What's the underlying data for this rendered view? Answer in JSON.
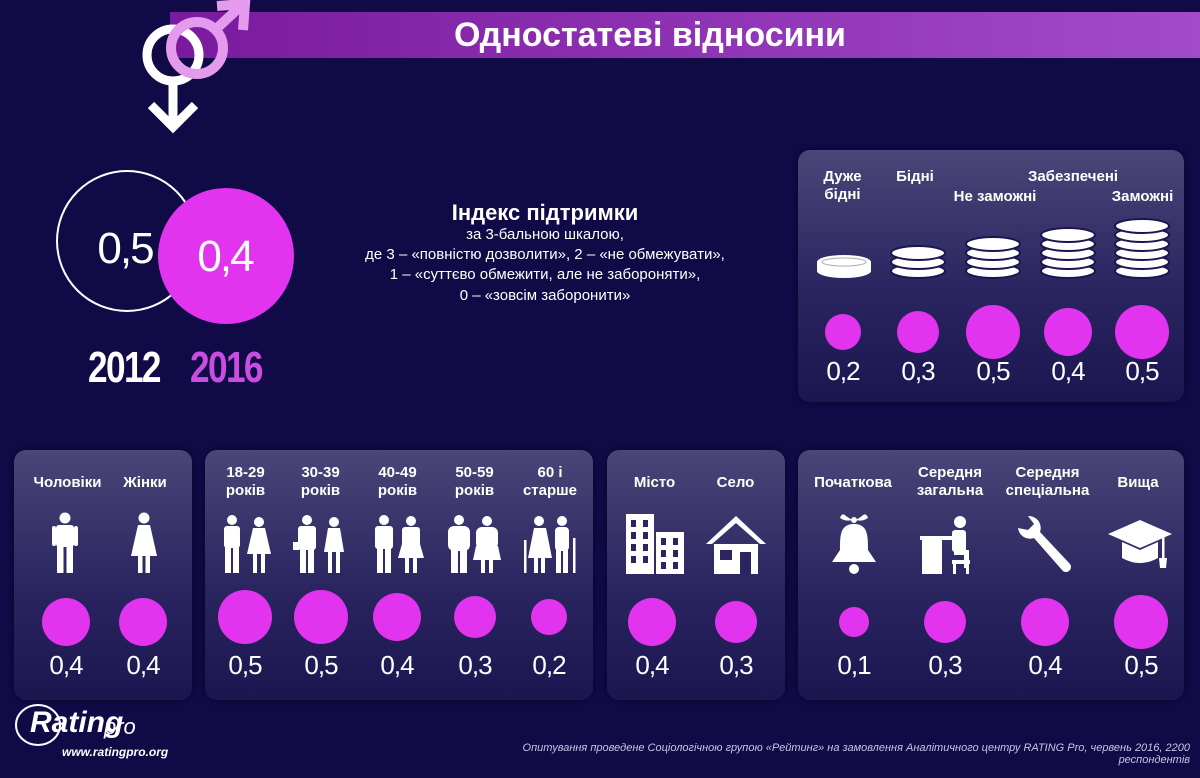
{
  "title": "Одностатеві відносини",
  "colors": {
    "accent": "#e234ef",
    "background": "#100a47",
    "title_bar": "#8e2fb6"
  },
  "overall": {
    "year_2012": "2012",
    "value_2012": "0,5",
    "year_2016": "2016",
    "value_2016": "0,4"
  },
  "index": {
    "title": "Індекс підтримки",
    "line1": "за 3-бальною шкалою,",
    "line2": "де 3 – «повністю дозволити», 2 – «не обмежувати»,",
    "line3": "1 – «суттєво обмежити, але не забороняти»,",
    "line4": "0 – «зовсім заборонити»"
  },
  "footnote": "Опитування проведене Соціологічною групою «Рейтинг» на замовлення Аналітичного центру RATING Pro, червень 2016, 2200 респондентів",
  "logo": {
    "name": "Rating",
    "suffix": "pro",
    "url": "www.ratingpro.org"
  },
  "chart_data": [
    {
      "type": "bubble",
      "group": "wealth",
      "categories": [
        "Дуже бідні",
        "Бідні",
        "Не заможні",
        "Забезпечені",
        "Заможні"
      ],
      "values": [
        0.2,
        0.3,
        0.5,
        0.4,
        0.5
      ],
      "labels": [
        "0,2",
        "0,3",
        "0,5",
        "0,4",
        "0,5"
      ],
      "icons": [
        "coins-1-icon",
        "coins-2-icon",
        "coins-3-icon",
        "coins-4-icon",
        "coins-5-icon"
      ]
    },
    {
      "type": "bubble",
      "group": "gender",
      "categories": [
        "Чоловіки",
        "Жінки"
      ],
      "values": [
        0.4,
        0.4
      ],
      "labels": [
        "0,4",
        "0,4"
      ],
      "icons": [
        "man-icon",
        "woman-icon"
      ]
    },
    {
      "type": "bubble",
      "group": "age",
      "categories": [
        "18-29 років",
        "30-39 років",
        "40-49 років",
        "50-59 років",
        "60 і старше"
      ],
      "values": [
        0.5,
        0.5,
        0.4,
        0.3,
        0.2
      ],
      "labels": [
        "0,5",
        "0,5",
        "0,4",
        "0,3",
        "0,2"
      ],
      "icons": [
        "young-couple-icon",
        "business-couple-icon",
        "couple-icon",
        "middle-aged-couple-icon",
        "elderly-couple-icon"
      ]
    },
    {
      "type": "bubble",
      "group": "settlement",
      "categories": [
        "Місто",
        "Село"
      ],
      "values": [
        0.4,
        0.3
      ],
      "labels": [
        "0,4",
        "0,3"
      ],
      "icons": [
        "city-buildings-icon",
        "house-icon"
      ]
    },
    {
      "type": "bubble",
      "group": "education",
      "categories": [
        "Початкова",
        "Середня загальна",
        "Середня спеціальна",
        "Вища"
      ],
      "values": [
        0.1,
        0.3,
        0.4,
        0.5
      ],
      "labels": [
        "0,1",
        "0,3",
        "0,4",
        "0,5"
      ],
      "icons": [
        "bell-icon",
        "student-desk-icon",
        "wrench-icon",
        "graduation-cap-icon"
      ]
    }
  ]
}
